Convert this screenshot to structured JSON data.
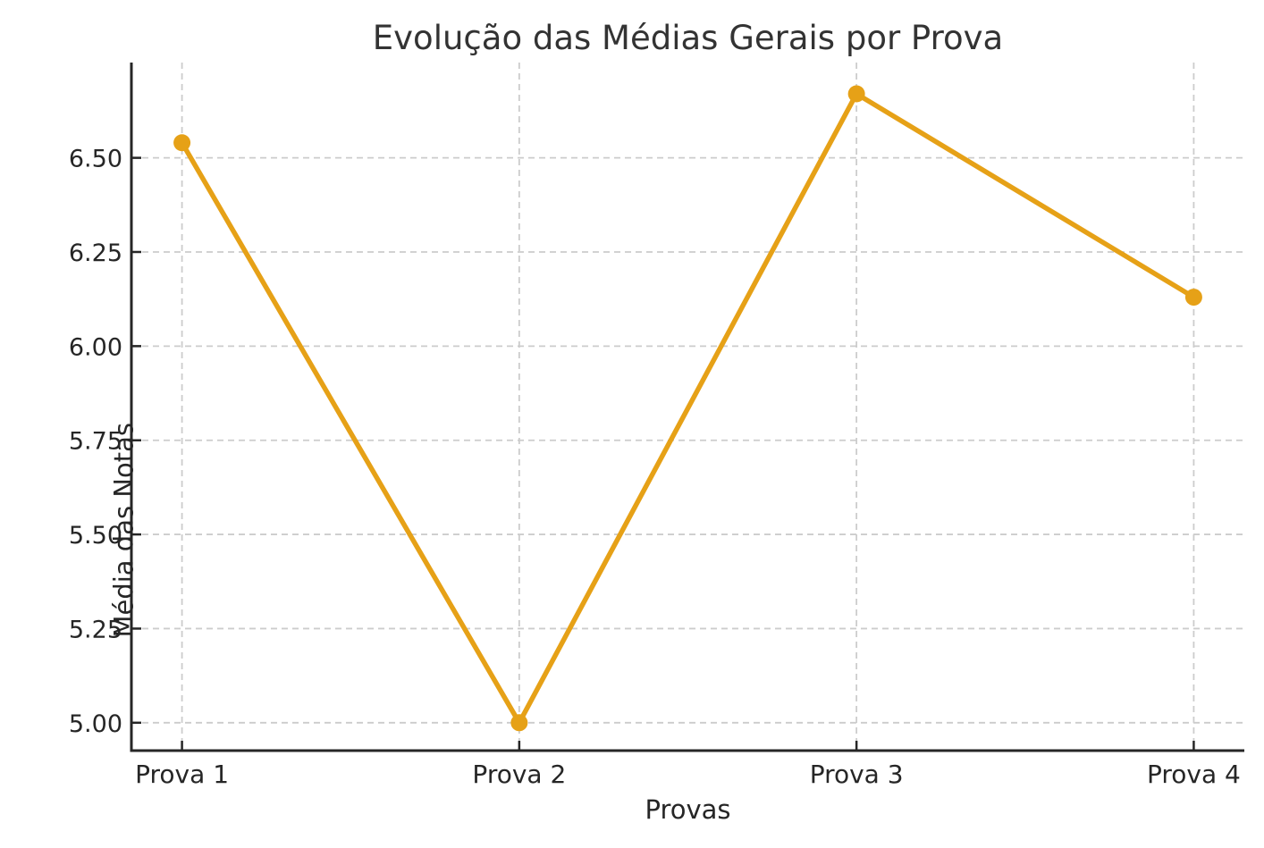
{
  "figure": {
    "background": "#FFFFFF"
  },
  "chart_data": {
    "type": "line",
    "title": "Evolução das Médias Gerais por Prova",
    "xlabel": "Provas",
    "ylabel": "Média das Notas",
    "categories": [
      "Prova 1",
      "Prova 2",
      "Prova 3",
      "Prova 4"
    ],
    "values": [
      6.54,
      5.0,
      6.67,
      6.13
    ],
    "yticks": [
      "5.00",
      "5.25",
      "5.50",
      "5.75",
      "6.00",
      "6.25",
      "6.50"
    ],
    "ylim": [
      4.926,
      6.753
    ],
    "grid": "dashed, both axes",
    "legend_position": "none",
    "marker": "circle",
    "line_color": "#E6A117",
    "marker_color": "#E6A117",
    "grid_color": "#CCCCCC",
    "spine_color": "#262626",
    "tick_color": "#262626",
    "tick_label_color": "#262626",
    "title_color": "#333333",
    "axis_label_color": "#262626"
  }
}
